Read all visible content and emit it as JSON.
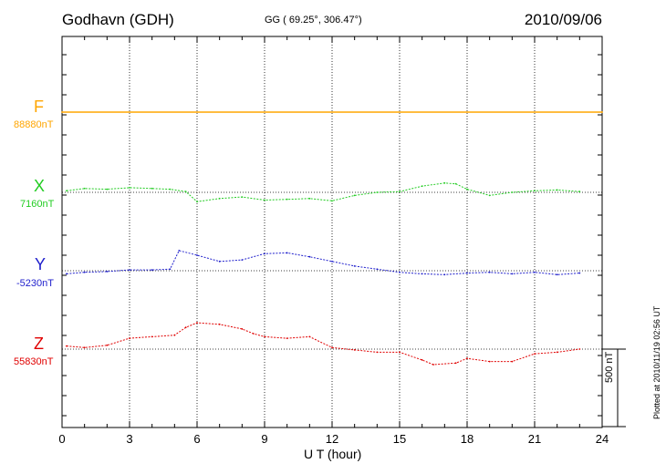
{
  "header": {
    "station": "Godhavn (GDH)",
    "coords": "GG ( 69.25°, 306.47°)",
    "date": "2010/09/06"
  },
  "side_note": "Plotted at 2010/11/19 02:56 UT",
  "chart_data": {
    "type": "line",
    "xlabel": "U T (hour)",
    "xlim": [
      0,
      24
    ],
    "xticks": [
      "0",
      "3",
      "6",
      "9",
      "12",
      "15",
      "18",
      "21",
      "24"
    ],
    "grid": true,
    "scale_bar": {
      "label": "500 nT",
      "value": 500
    },
    "series": [
      {
        "name": "F",
        "baseline_label": "88880nT",
        "color": "#ffa500",
        "x": [
          0,
          24
        ],
        "y": [
          0,
          0
        ]
      },
      {
        "name": "X",
        "baseline_label": "7160nT",
        "color": "#22cc22",
        "x": [
          0.2,
          1.0,
          2.0,
          3.0,
          4.0,
          4.8,
          5.5,
          6.0,
          7.0,
          8.0,
          9.0,
          10.0,
          11.0,
          12.0,
          13.0,
          14.0,
          15.0,
          16.0,
          17.0,
          17.5,
          18.0,
          19.0,
          20.0,
          21.0,
          22.0,
          23.0
        ],
        "y": [
          10,
          25,
          20,
          30,
          25,
          20,
          5,
          -60,
          -40,
          -30,
          -50,
          -45,
          -40,
          -55,
          -20,
          0,
          5,
          40,
          60,
          55,
          20,
          -20,
          0,
          10,
          15,
          5
        ]
      },
      {
        "name": "Y",
        "baseline_label": "-5230nT",
        "color": "#1f1fcc",
        "x": [
          0.2,
          1.0,
          2.0,
          3.0,
          4.0,
          4.8,
          5.2,
          6.0,
          7.0,
          8.0,
          9.0,
          10.0,
          11.0,
          12.0,
          13.0,
          14.0,
          15.0,
          16.0,
          17.0,
          18.0,
          19.0,
          20.0,
          21.0,
          22.0,
          23.0
        ],
        "y": [
          -20,
          -10,
          -5,
          5,
          5,
          10,
          130,
          100,
          60,
          70,
          110,
          115,
          90,
          60,
          30,
          10,
          -10,
          -20,
          -25,
          -15,
          -10,
          -20,
          -10,
          -25,
          -15
        ]
      },
      {
        "name": "Z",
        "baseline_label": "55830nT",
        "color": "#e00000",
        "x": [
          0.2,
          1.0,
          2.0,
          3.0,
          4.0,
          5.0,
          5.5,
          6.0,
          7.0,
          8.0,
          8.5,
          9.0,
          10.0,
          11.0,
          12.0,
          13.0,
          14.0,
          15.0,
          16.0,
          16.5,
          17.5,
          18.0,
          19.0,
          20.0,
          21.0,
          22.0,
          23.0
        ],
        "y": [
          20,
          10,
          25,
          70,
          80,
          90,
          140,
          170,
          160,
          130,
          100,
          80,
          70,
          80,
          10,
          -5,
          -20,
          -20,
          -70,
          -100,
          -90,
          -60,
          -80,
          -80,
          -30,
          -20,
          0
        ]
      }
    ]
  }
}
